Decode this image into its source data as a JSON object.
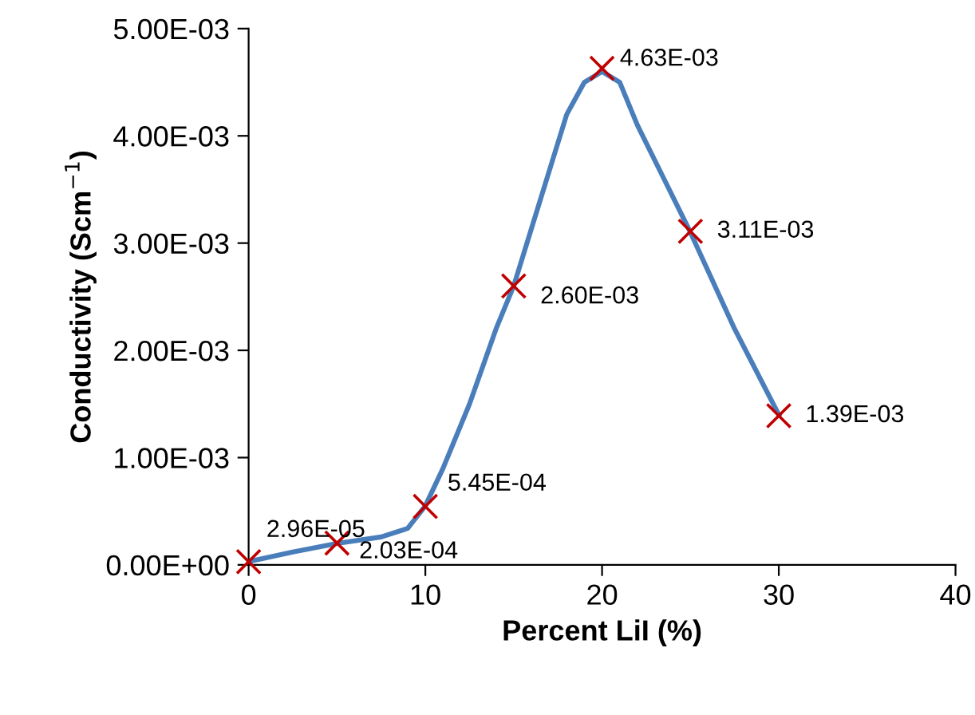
{
  "chart_data": {
    "type": "line",
    "xlabel": "Percent LiI (%)",
    "ylabel": "Conductivity (Scm$^{−1}$)",
    "x": [
      0,
      5,
      10,
      15,
      20,
      25,
      30
    ],
    "series": [
      {
        "color": "#4a7ebb",
        "marker": "none",
        "x": [
          0,
          2.5,
          5,
          7.5,
          9,
          10,
          11,
          12.5,
          14,
          15,
          16.5,
          18,
          19,
          20,
          21,
          22,
          23.5,
          25,
          27.5,
          30
        ],
        "values": [
          3e-05,
          0.00012,
          0.0002,
          0.00026,
          0.00034,
          0.00055,
          0.0009,
          0.0015,
          0.0022,
          0.0026,
          0.0034,
          0.0042,
          0.0045,
          0.0046,
          0.0045,
          0.0041,
          0.0036,
          0.0031,
          0.0022,
          0.0014
        ]
      },
      {
        "type": "scatter",
        "color": "#c00000",
        "marker": "cross",
        "values": [
          2.96e-05,
          0.000203,
          0.000545,
          0.0026,
          0.00463,
          0.00311,
          0.00139
        ],
        "value_labels": [
          "2.96E-05",
          "2.03E-04",
          "5.45E-04",
          "2.60E-03",
          "4.63E-03",
          "3.11E-03",
          "1.39E-03"
        ]
      }
    ],
    "xlim": [
      0,
      40
    ],
    "xticks": [
      0,
      10,
      20,
      30,
      40
    ],
    "ylim": [
      0,
      0.005
    ],
    "yticks": [
      {
        "value": 0,
        "label": "0.00E+00"
      },
      {
        "value": 0.001,
        "label": "1.00E-03"
      },
      {
        "value": 0.002,
        "label": "2.00E-03"
      },
      {
        "value": 0.003,
        "label": "3.00E-03"
      },
      {
        "value": 0.004,
        "label": "4.00E-03"
      },
      {
        "value": 0.005,
        "label": "5.00E-03"
      }
    ],
    "grid": false,
    "legend": false
  }
}
